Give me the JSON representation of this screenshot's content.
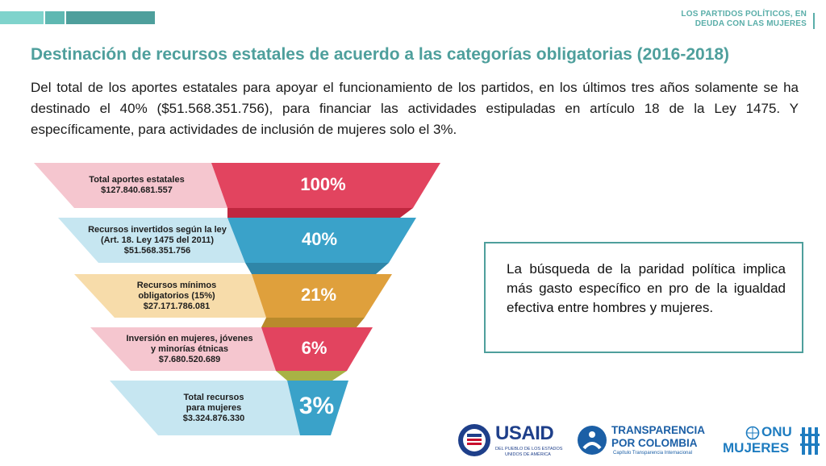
{
  "header": {
    "top_right_line1": "LOS PARTIDOS POLÍTICOS, EN",
    "top_right_line2": "DEUDA CON LAS MUJERES",
    "bar_colors": [
      "#7fd3cc",
      "#5fb8b2",
      "#4e9f9c"
    ]
  },
  "title": "Destinación de recursos estatales de acuerdo  a las categorías obligatorias (2016-2018)",
  "paragraph": "Del total de los aportes estatales para apoyar el funcionamiento de los partidos, en los últimos tres años solamente se ha destinado el 40% ($51.568.351.756), para financiar las actividades estipuladas en artículo 18 de la Ley 1475. Y específicamente, para actividades de inclusión de mujeres solo el 3%.",
  "funnel": [
    {
      "lines": [
        "Total aportes estatales",
        "$127.840.681.557"
      ],
      "percent": "100%",
      "light_color": "#f5c6cf",
      "dark_color": "#e2445f"
    },
    {
      "lines": [
        "Recursos invertidos según la ley",
        "(Art. 18. Ley 1475 del 2011)",
        "$51.568.351.756"
      ],
      "percent": "40%",
      "light_color": "#c6e6f1",
      "dark_color": "#3aa2c9"
    },
    {
      "lines": [
        "Recursos mínimos",
        "obligatorios (15%)",
        "$27.171.786.081"
      ],
      "percent": "21%",
      "light_color": "#f7dcaa",
      "dark_color": "#dfa03c"
    },
    {
      "lines": [
        "Inversión en mujeres, jóvenes",
        "y minorías étnicas",
        "$7.680.520.689"
      ],
      "percent": "6%",
      "light_color": "#f5c6cf",
      "dark_color": "#e2445f"
    },
    {
      "lines": [
        "Total recursos",
        "para mujeres",
        "$3.324.876.330"
      ],
      "percent": "3%",
      "light_color": "#c6e6f1",
      "dark_color": "#3aa2c9"
    }
  ],
  "connector_colors": [
    "#c0273f",
    "#2f86a8",
    "#b98a2c",
    "#a8b245"
  ],
  "callout": "La búsqueda de la paridad política implica más gasto específico en pro de la igualdad efectiva entre hombres y mujeres.",
  "logos": {
    "usaid": {
      "name": "USAID",
      "sub1": "DEL PUEBLO DE LOS ESTADOS",
      "sub2": "UNIDOS DE AMÉRICA"
    },
    "transparencia": {
      "line1": "TRANSPARENCIA",
      "line2": "POR COLOMBIA",
      "sub": "Capítulo Transparencia Internacional"
    },
    "onu": {
      "line1": "ONU",
      "line2": "MUJERES"
    }
  }
}
